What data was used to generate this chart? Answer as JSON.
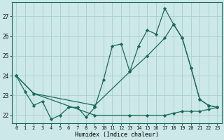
{
  "xlabel": "Humidex (Indice chaleur)",
  "background_color": "#cde8e8",
  "grid_color": "#aacece",
  "line_color": "#1a6a5a",
  "xlim_min": -0.5,
  "xlim_max": 23.5,
  "ylim_min": 21.6,
  "ylim_max": 27.7,
  "yticks": [
    22,
    23,
    24,
    25,
    26,
    27
  ],
  "xticks": [
    0,
    1,
    2,
    3,
    4,
    5,
    6,
    7,
    8,
    9,
    10,
    11,
    12,
    13,
    14,
    15,
    16,
    17,
    18,
    19,
    20,
    21,
    22,
    23
  ],
  "s1_x": [
    0,
    1,
    2,
    3,
    4,
    5,
    6,
    7,
    8,
    9,
    10,
    11,
    12,
    13,
    14,
    15,
    16,
    17,
    18,
    19,
    20,
    21,
    22,
    23
  ],
  "s1_y": [
    24.0,
    23.2,
    22.5,
    22.7,
    21.8,
    22.0,
    22.4,
    22.4,
    21.9,
    22.4,
    23.8,
    25.5,
    25.6,
    24.2,
    25.5,
    26.3,
    26.1,
    27.4,
    26.6,
    25.9,
    24.4,
    22.8,
    22.5,
    22.4
  ],
  "s2_x": [
    0,
    2,
    9,
    13,
    15,
    17,
    18,
    19,
    20,
    21,
    22,
    23
  ],
  "s2_y": [
    24.0,
    23.1,
    22.5,
    24.2,
    25.0,
    25.9,
    26.6,
    25.9,
    24.4,
    22.8,
    22.5,
    22.4
  ],
  "s3_x": [
    0,
    2,
    9,
    13,
    15,
    17,
    18,
    19,
    20,
    21,
    22,
    23
  ],
  "s3_y": [
    24.0,
    23.1,
    22.0,
    22.0,
    22.0,
    22.0,
    22.1,
    22.2,
    22.2,
    22.2,
    22.3,
    22.4
  ]
}
